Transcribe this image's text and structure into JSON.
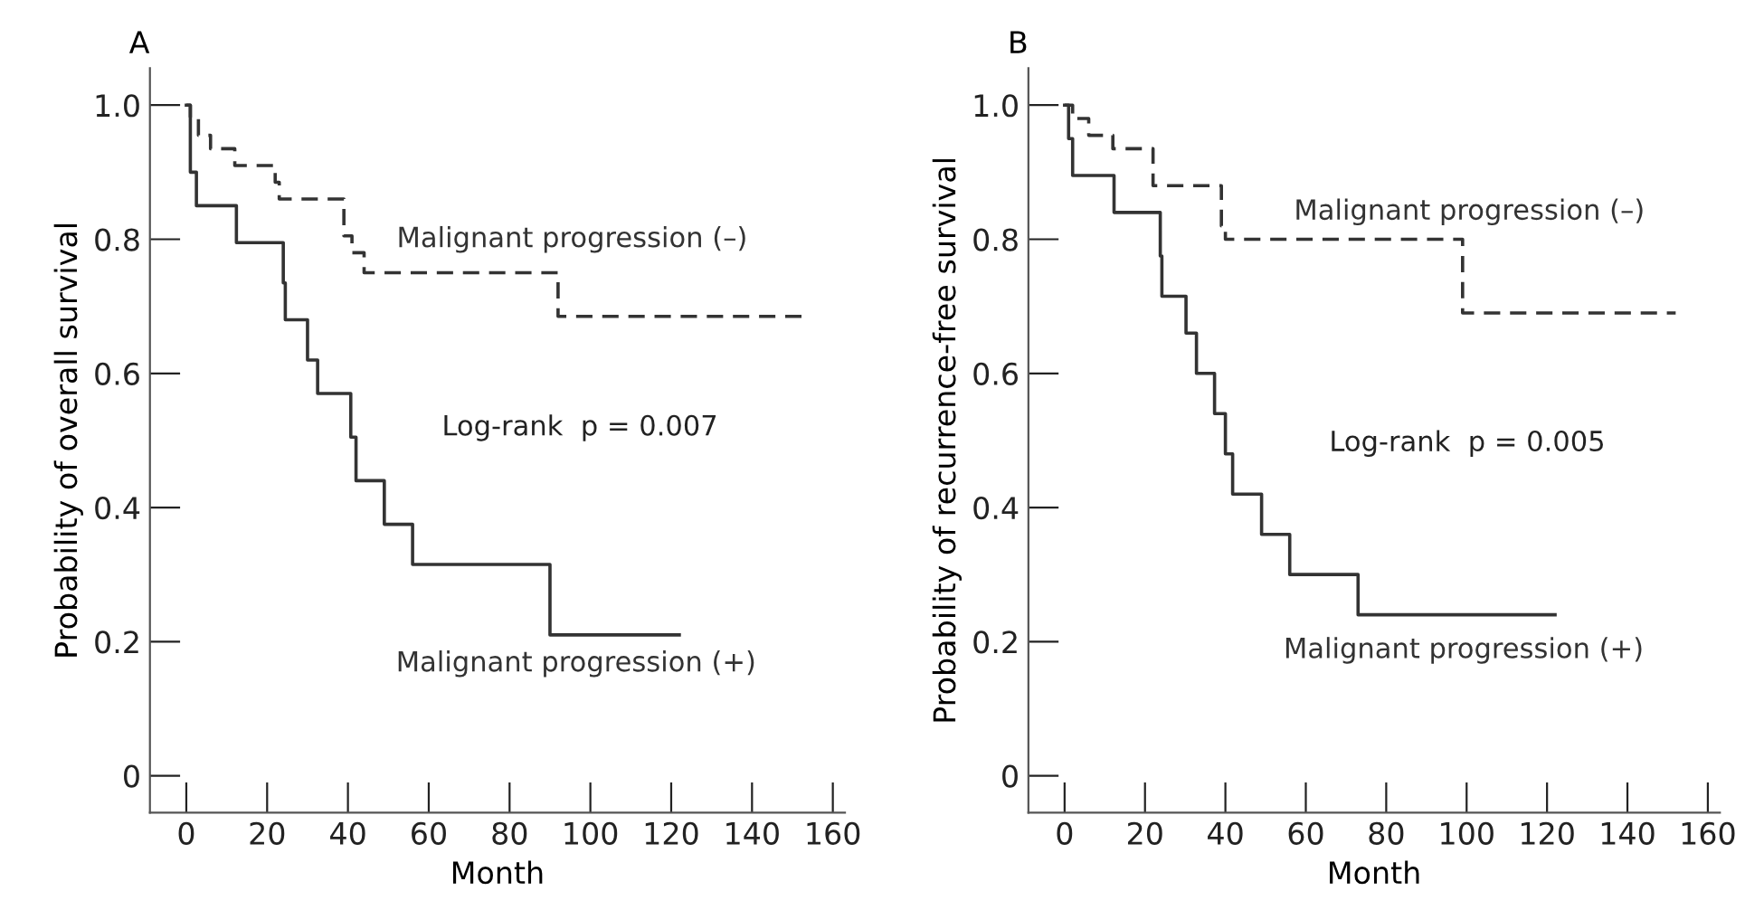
{
  "chart_data": [
    {
      "type": "step",
      "title": "A",
      "xlabel": "Month",
      "ylabel": "Probability of overall survival",
      "xlim": [
        -9,
        163
      ],
      "ylim": [
        -0.055,
        1.055
      ],
      "xticks": [
        0,
        20,
        40,
        60,
        80,
        100,
        120,
        140,
        160
      ],
      "yticks": [
        0,
        0.2,
        0.4,
        0.6,
        0.8,
        {
          "value": 1,
          "label": "1.0"
        }
      ],
      "grid": false,
      "legend": false,
      "annotations": [
        "Log-rank  p = 0.007"
      ],
      "series": [
        {
          "name": "Malignant progression (–)",
          "color": "#333333",
          "line_style": "dashed",
          "x": [
            0,
            1,
            3,
            6,
            12,
            22,
            23,
            39,
            41,
            44,
            92,
            153
          ],
          "values": [
            1.0,
            0.98,
            0.955,
            0.935,
            0.91,
            0.885,
            0.86,
            0.805,
            0.78,
            0.75,
            0.685,
            0.685
          ]
        },
        {
          "name": "Malignant progression (+)",
          "color": "#333333",
          "line_style": "solid",
          "x": [
            0,
            1,
            2.5,
            12.4,
            24,
            24.5,
            30,
            32.5,
            40.7,
            42,
            49,
            56,
            90,
            122
          ],
          "values": [
            1.0,
            0.9,
            0.85,
            0.795,
            0.735,
            0.68,
            0.62,
            0.57,
            0.505,
            0.44,
            0.375,
            0.315,
            0.21,
            0.21
          ]
        }
      ]
    },
    {
      "type": "step",
      "title": "B",
      "xlabel": "Month",
      "ylabel": "Probability of recurrence-free survival",
      "xlim": [
        -9,
        163
      ],
      "ylim": [
        -0.055,
        1.055
      ],
      "xticks": [
        0,
        20,
        40,
        60,
        80,
        100,
        120,
        140,
        160
      ],
      "yticks": [
        0,
        0.2,
        0.4,
        0.6,
        0.8,
        {
          "value": 1,
          "label": "1.0"
        }
      ],
      "grid": false,
      "legend": false,
      "annotations": [
        "Log-rank  p = 0.005"
      ],
      "series": [
        {
          "name": "Malignant progression (–)",
          "color": "#333333",
          "line_style": "dashed",
          "x": [
            0,
            2,
            6,
            12,
            22,
            39,
            40,
            99,
            152
          ],
          "values": [
            1.0,
            0.98,
            0.955,
            0.935,
            0.88,
            0.82,
            0.8,
            0.69,
            0.69
          ]
        },
        {
          "name": "Malignant progression (+)",
          "color": "#333333",
          "line_style": "solid",
          "x": [
            0,
            1,
            2,
            12.3,
            23.8,
            24.2,
            30.2,
            32.8,
            37.3,
            40,
            41.8,
            49,
            56,
            73,
            122
          ],
          "values": [
            1.0,
            0.95,
            0.895,
            0.84,
            0.775,
            0.715,
            0.66,
            0.6,
            0.54,
            0.48,
            0.42,
            0.36,
            0.3,
            0.24,
            0.24
          ]
        }
      ]
    }
  ]
}
